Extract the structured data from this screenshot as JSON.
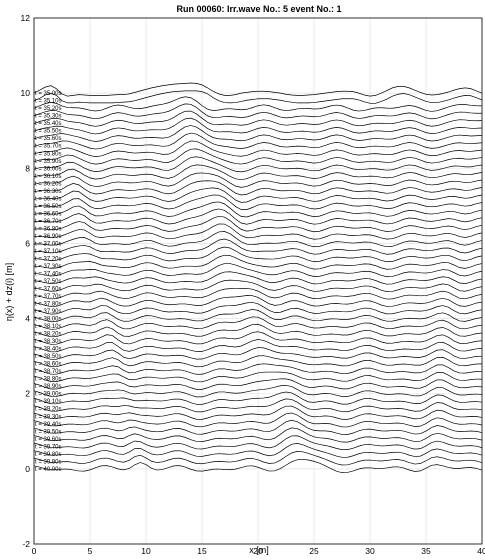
{
  "chart_data": {
    "type": "line",
    "title": "Run 00060: Irr.wave No.: 5 event No.: 1",
    "xlabel": "x [m]",
    "ylabel": "η(x) + dz(i) [m]",
    "xlim": [
      0,
      40
    ],
    "ylim": [
      -2,
      12
    ],
    "xticks": [
      "0",
      "5",
      "10",
      "15",
      "20",
      "25",
      "30",
      "35",
      "40"
    ],
    "yticks": [
      "-2",
      "0",
      "2",
      "4",
      "6",
      "8",
      "10",
      "12"
    ],
    "grid": true,
    "x_sampling": {
      "start": 0,
      "end": 40,
      "step": 0.5
    },
    "series_offset_step": 0.2,
    "series": [
      {
        "name": "t = 35.00s",
        "offset": 10.0,
        "y": [
          0.0,
          0.08,
          0.16,
          0.2,
          0.12,
          -0.02,
          -0.08,
          -0.06,
          -0.04,
          -0.05,
          -0.06,
          -0.06,
          -0.06,
          -0.06,
          -0.05,
          -0.04,
          -0.04,
          -0.02,
          0.02,
          0.06,
          0.1,
          0.14,
          0.17,
          0.2,
          0.22,
          0.24,
          0.25,
          0.26,
          0.27,
          0.26,
          0.22,
          0.14,
          0.05,
          -0.02,
          -0.06,
          -0.06,
          -0.04,
          0.0,
          0.02,
          0.04,
          0.05,
          0.05,
          0.04,
          0.02,
          0.0,
          -0.03,
          -0.05,
          -0.06,
          -0.06,
          -0.05,
          -0.04,
          -0.02,
          0.0,
          0.02,
          0.04,
          0.05,
          0.05,
          0.04,
          0.0,
          -0.05,
          -0.08,
          -0.06,
          0.0,
          0.07,
          0.14,
          0.18,
          0.18,
          0.14,
          0.08,
          0.02,
          -0.03,
          -0.05,
          -0.04,
          -0.01,
          0.03,
          0.08,
          0.12,
          0.14,
          0.12,
          0.06,
          0.0
        ]
      },
      {
        "name": "t = 35.10s",
        "offset": 9.8,
        "y": [
          0.0,
          0.06,
          0.15,
          0.2,
          0.14,
          0.0,
          -0.06,
          -0.06,
          -0.04,
          -0.05,
          -0.06,
          -0.06,
          -0.06,
          -0.06,
          -0.06,
          -0.05,
          -0.04,
          -0.03,
          0.0,
          0.04,
          0.08,
          0.12,
          0.16,
          0.19,
          0.22,
          0.24,
          0.25,
          0.26,
          0.26,
          0.26,
          0.24,
          0.18,
          0.08,
          0.0,
          -0.05,
          -0.06,
          -0.05,
          -0.02,
          0.01,
          0.03,
          0.05,
          0.05,
          0.05,
          0.03,
          0.01,
          -0.02,
          -0.04,
          -0.06,
          -0.06,
          -0.06,
          -0.05,
          -0.03,
          -0.01,
          0.01,
          0.03,
          0.05,
          0.05,
          0.05,
          0.02,
          -0.03,
          -0.07,
          -0.07,
          -0.02,
          0.04,
          0.12,
          0.17,
          0.19,
          0.16,
          0.1,
          0.04,
          -0.02,
          -0.05,
          -0.05,
          -0.02,
          0.02,
          0.07,
          0.11,
          0.14,
          0.13,
          0.08,
          0.02
        ]
      }
    ],
    "series_note": "",
    "series_labels": [
      "t = 35.00s",
      "t = 35.10s",
      "t = 35.20s",
      "t = 35.30s",
      "t = 35.40s",
      "t = 35.50s",
      "t = 35.60s",
      "t = 35.70s",
      "t = 35.80s",
      "t = 35.90s",
      "t = 36.00s",
      "t = 36.10s",
      "t = 36.20s",
      "t = 36.30s",
      "t = 36.40s",
      "t = 36.50s",
      "t = 36.60s",
      "t = 36.70s",
      "t = 36.80s",
      "t = 36.90s",
      "t = 37.00s",
      "t = 37.10s",
      "t = 37.20s",
      "t = 37.30s",
      "t = 37.40s",
      "t = 37.50s",
      "t = 37.60s",
      "t = 37.70s",
      "t = 37.80s",
      "t = 37.90s",
      "t = 38.00s",
      "t = 38.10s",
      "t = 38.20s",
      "t = 38.30s",
      "t = 38.40s",
      "t = 38.50s",
      "t = 38.60s",
      "t = 38.70s",
      "t = 38.80s",
      "t = 38.90s",
      "t = 39.00s",
      "t = 39.10s",
      "t = 39.20s",
      "t = 39.30s",
      "t = 39.40s",
      "t = 39.50s",
      "t = 39.60s",
      "t = 39.70s",
      "t = 39.80s",
      "t = 39.90s",
      "t = 40.00s"
    ],
    "series_offsets": [
      10.0,
      9.8,
      9.6,
      9.4,
      9.2,
      9.0,
      8.8,
      8.6,
      8.4,
      8.2,
      8.0,
      7.8,
      7.6,
      7.4,
      7.2,
      7.0,
      6.8,
      6.6,
      6.4,
      6.2,
      6.0,
      5.8,
      5.6,
      5.4,
      5.2,
      5.0,
      4.8,
      4.6,
      4.4,
      4.2,
      4.0,
      3.8,
      3.6,
      3.4,
      3.2,
      3.0,
      2.8,
      2.6,
      2.4,
      2.2,
      2.0,
      1.8,
      1.6,
      1.4,
      1.2,
      1.0,
      0.8,
      0.6,
      0.4,
      0.2,
      0.0
    ],
    "line_color": "#000000",
    "grid_color": "#e6e6e6"
  }
}
